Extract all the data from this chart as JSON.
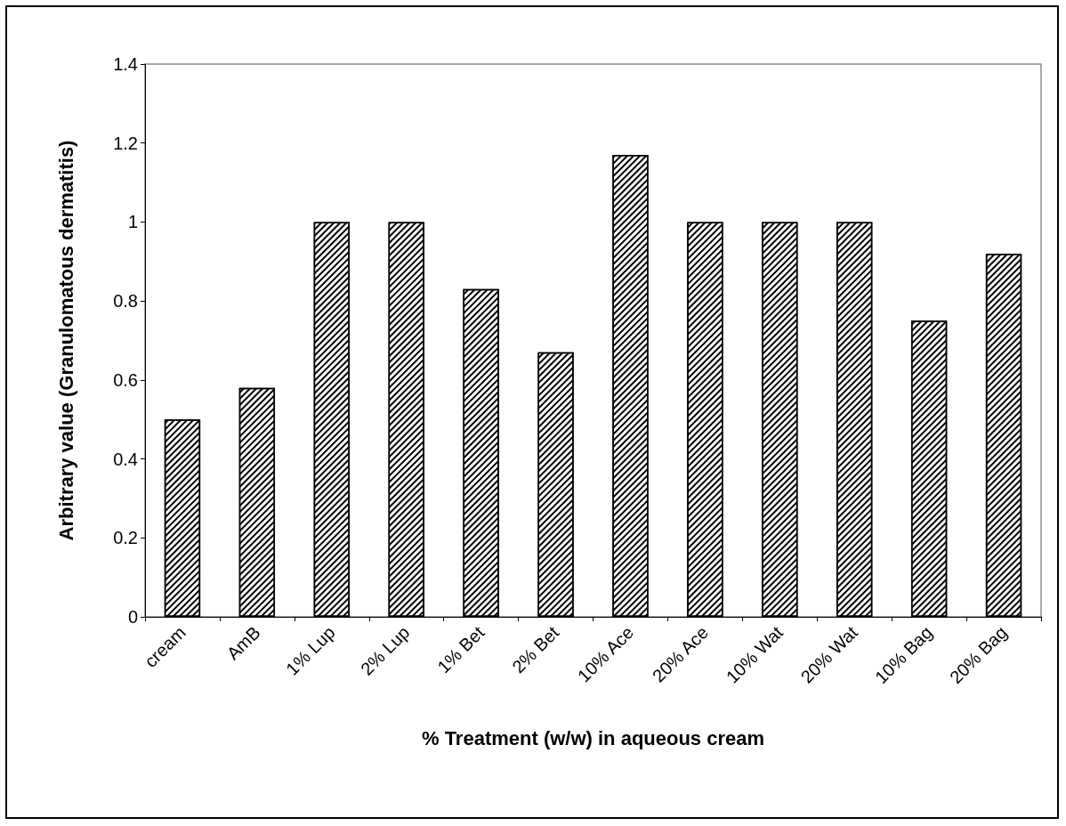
{
  "chart_data": {
    "type": "bar",
    "xlabel": "% Treatment (w/w) in aqueous cream",
    "ylabel": "Arbitrary value (Granulomatous dermatitis)",
    "categories": [
      "cream",
      "AmB",
      "1% Lup",
      "2% Lup",
      "1% Bet",
      "2% Bet",
      "10% Ace",
      "20% Ace",
      "10% Wat",
      "20% Wat",
      "10% Bag",
      "20% Bag"
    ],
    "values": [
      0.5,
      0.58,
      1,
      1,
      0.83,
      0.67,
      1.17,
      1,
      1,
      1,
      0.75,
      0.92
    ],
    "color": "#ffffff",
    "ylim": [
      0,
      1.4
    ],
    "yticks": [
      0,
      0.2,
      0.4,
      0.6,
      0.8,
      1,
      1.2,
      1.4
    ],
    "grid": false
  }
}
